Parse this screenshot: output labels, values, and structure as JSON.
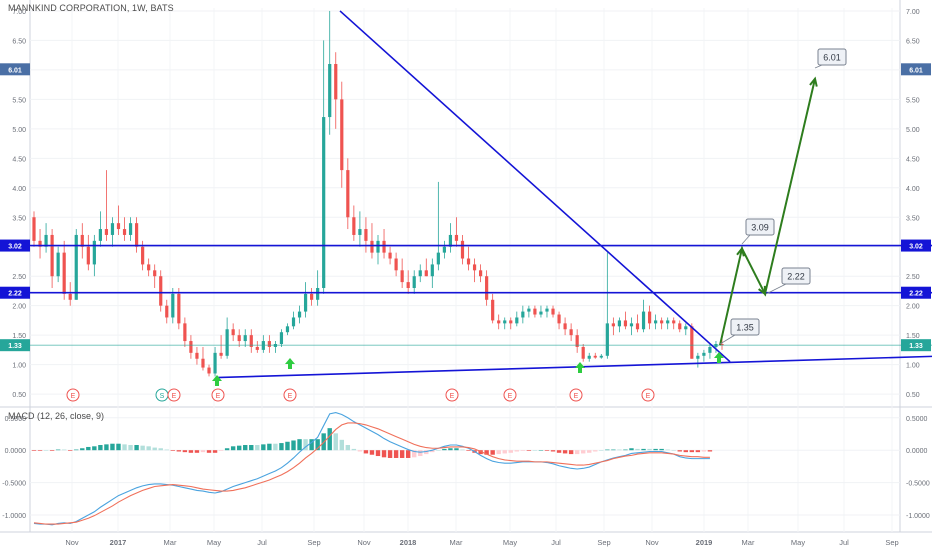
{
  "header": {
    "title": "MANNKIND CORPORATION, 1W, BATS"
  },
  "macd_header": {
    "label": "MACD (12, 26, close, 9)"
  },
  "colors": {
    "up": "#26a69a",
    "down": "#ef5350",
    "resistance": "#1414d6",
    "trend": "#1414d6",
    "projection": "#2e7d1e",
    "arrow_marker": "#2ecc40",
    "macd_line": "#4aa3df",
    "signal_line": "#f0705a",
    "hist_pos_strong": "#26a69a",
    "hist_pos_weak": "#b2dfdb",
    "hist_neg_strong": "#ef5350",
    "hist_neg_weak": "#ffcdd2",
    "price_line": "#26a69a"
  },
  "chart_data": [
    {
      "type": "candlestick",
      "title": "MANNKIND CORPORATION, 1W, BATS",
      "x_ticks": [
        "Nov",
        "2017",
        "Mar",
        "May",
        "Jul",
        "Sep",
        "Nov",
        "2018",
        "Mar",
        "May",
        "Jul",
        "Sep",
        "Nov",
        "2019",
        "Mar",
        "May",
        "Jul",
        "Sep"
      ],
      "y_ticks": [
        "0.50",
        "1.00",
        "1.50",
        "2.00",
        "2.50",
        "3.00",
        "3.50",
        "4.00",
        "4.50",
        "5.00",
        "5.50",
        "6.00",
        "6.50",
        "7.00"
      ],
      "ylim": [
        0.4,
        7.05
      ],
      "price_labels": [
        {
          "text": "6.01",
          "value": 6.01,
          "color": "#4a6fa5"
        },
        {
          "text": "3.02",
          "value": 3.02,
          "color": "#1414d6"
        },
        {
          "text": "2.22",
          "value": 2.22,
          "color": "#1414d6"
        },
        {
          "text": "1.33",
          "value": 1.33,
          "color": "#26a69a"
        }
      ],
      "candles": [
        [
          3.5,
          3.6,
          3.0,
          3.1
        ],
        [
          3.1,
          3.3,
          2.8,
          3.0
        ],
        [
          3.0,
          3.4,
          2.9,
          3.2
        ],
        [
          3.2,
          3.3,
          2.3,
          2.5
        ],
        [
          2.5,
          3.0,
          2.4,
          2.9
        ],
        [
          2.9,
          3.1,
          2.1,
          2.2
        ],
        [
          2.2,
          2.4,
          2.0,
          2.1
        ],
        [
          2.1,
          3.3,
          2.1,
          3.2
        ],
        [
          3.2,
          3.4,
          2.8,
          3.0
        ],
        [
          3.0,
          3.2,
          2.6,
          2.7
        ],
        [
          2.7,
          3.2,
          2.5,
          3.1
        ],
        [
          3.1,
          3.6,
          3.0,
          3.3
        ],
        [
          3.3,
          4.3,
          3.1,
          3.2
        ],
        [
          3.2,
          3.5,
          3.0,
          3.4
        ],
        [
          3.4,
          3.7,
          3.2,
          3.3
        ],
        [
          3.3,
          3.5,
          3.1,
          3.2
        ],
        [
          3.2,
          3.5,
          3.1,
          3.4
        ],
        [
          3.4,
          3.5,
          2.9,
          3.0
        ],
        [
          3.0,
          3.1,
          2.6,
          2.7
        ],
        [
          2.7,
          2.8,
          2.5,
          2.6
        ],
        [
          2.6,
          2.7,
          2.3,
          2.5
        ],
        [
          2.5,
          2.6,
          1.9,
          2.0
        ],
        [
          2.0,
          2.1,
          1.7,
          1.8
        ],
        [
          1.8,
          2.3,
          1.7,
          2.2
        ],
        [
          2.2,
          2.3,
          1.6,
          1.7
        ],
        [
          1.7,
          1.8,
          1.3,
          1.4
        ],
        [
          1.4,
          1.5,
          1.1,
          1.2
        ],
        [
          1.2,
          1.3,
          1.0,
          1.1
        ],
        [
          1.1,
          1.3,
          0.9,
          0.95
        ],
        [
          0.95,
          1.0,
          0.8,
          0.85
        ],
        [
          0.85,
          1.3,
          0.8,
          1.2
        ],
        [
          1.2,
          1.5,
          1.1,
          1.15
        ],
        [
          1.15,
          1.8,
          1.1,
          1.6
        ],
        [
          1.6,
          1.7,
          1.4,
          1.5
        ],
        [
          1.5,
          1.6,
          1.3,
          1.4
        ],
        [
          1.4,
          1.6,
          1.3,
          1.5
        ],
        [
          1.5,
          1.6,
          1.2,
          1.3
        ],
        [
          1.3,
          1.4,
          1.2,
          1.25
        ],
        [
          1.25,
          1.5,
          1.2,
          1.4
        ],
        [
          1.4,
          1.5,
          1.2,
          1.3
        ],
        [
          1.3,
          1.4,
          1.2,
          1.35
        ],
        [
          1.35,
          1.6,
          1.3,
          1.55
        ],
        [
          1.55,
          1.7,
          1.5,
          1.65
        ],
        [
          1.65,
          1.9,
          1.6,
          1.8
        ],
        [
          1.8,
          2.0,
          1.7,
          1.9
        ],
        [
          1.9,
          2.4,
          1.8,
          2.2
        ],
        [
          2.2,
          2.3,
          2.0,
          2.1
        ],
        [
          2.1,
          2.6,
          2.0,
          2.3
        ],
        [
          2.3,
          6.5,
          2.2,
          5.2
        ],
        [
          5.2,
          7.0,
          4.9,
          6.1
        ],
        [
          6.1,
          6.3,
          5.0,
          5.5
        ],
        [
          5.5,
          5.8,
          4.0,
          4.3
        ],
        [
          4.3,
          4.5,
          3.3,
          3.5
        ],
        [
          3.5,
          3.7,
          3.1,
          3.2
        ],
        [
          3.2,
          3.6,
          3.0,
          3.3
        ],
        [
          3.3,
          3.5,
          2.9,
          3.1
        ],
        [
          3.1,
          3.4,
          2.8,
          2.9
        ],
        [
          2.9,
          3.2,
          2.7,
          3.1
        ],
        [
          3.1,
          3.3,
          2.8,
          2.9
        ],
        [
          2.9,
          3.0,
          2.7,
          2.8
        ],
        [
          2.8,
          2.9,
          2.5,
          2.6
        ],
        [
          2.6,
          2.8,
          2.3,
          2.4
        ],
        [
          2.4,
          2.6,
          2.2,
          2.3
        ],
        [
          2.3,
          2.6,
          2.2,
          2.5
        ],
        [
          2.5,
          2.7,
          2.4,
          2.6
        ],
        [
          2.6,
          2.8,
          2.5,
          2.5
        ],
        [
          2.5,
          2.8,
          2.3,
          2.7
        ],
        [
          2.7,
          4.1,
          2.6,
          2.9
        ],
        [
          2.9,
          3.1,
          2.8,
          3.0
        ],
        [
          3.0,
          3.4,
          2.9,
          3.2
        ],
        [
          3.2,
          3.5,
          3.0,
          3.1
        ],
        [
          3.1,
          3.2,
          2.7,
          2.8
        ],
        [
          2.8,
          3.0,
          2.6,
          2.7
        ],
        [
          2.7,
          2.8,
          2.4,
          2.6
        ],
        [
          2.6,
          2.7,
          2.4,
          2.5
        ],
        [
          2.5,
          2.6,
          2.0,
          2.1
        ],
        [
          2.1,
          2.2,
          1.7,
          1.75
        ],
        [
          1.75,
          1.85,
          1.6,
          1.7
        ],
        [
          1.7,
          1.8,
          1.6,
          1.75
        ],
        [
          1.75,
          1.8,
          1.6,
          1.7
        ],
        [
          1.7,
          1.9,
          1.65,
          1.8
        ],
        [
          1.8,
          2.0,
          1.7,
          1.9
        ],
        [
          1.9,
          2.0,
          1.8,
          1.95
        ],
        [
          1.95,
          2.0,
          1.8,
          1.85
        ],
        [
          1.85,
          2.0,
          1.8,
          1.9
        ],
        [
          1.9,
          2.0,
          1.8,
          1.95
        ],
        [
          1.95,
          2.0,
          1.8,
          1.85
        ],
        [
          1.85,
          1.9,
          1.6,
          1.7
        ],
        [
          1.7,
          1.8,
          1.5,
          1.6
        ],
        [
          1.6,
          1.7,
          1.4,
          1.5
        ],
        [
          1.5,
          1.6,
          1.2,
          1.3
        ],
        [
          1.3,
          1.35,
          1.05,
          1.1
        ],
        [
          1.1,
          1.2,
          1.05,
          1.15
        ],
        [
          1.15,
          1.2,
          1.1,
          1.12
        ],
        [
          1.12,
          1.18,
          1.1,
          1.15
        ],
        [
          1.15,
          2.9,
          1.1,
          1.7
        ],
        [
          1.7,
          1.8,
          1.5,
          1.65
        ],
        [
          1.65,
          1.8,
          1.55,
          1.75
        ],
        [
          1.75,
          1.9,
          1.6,
          1.65
        ],
        [
          1.65,
          1.8,
          1.5,
          1.7
        ],
        [
          1.7,
          1.85,
          1.55,
          1.6
        ],
        [
          1.6,
          2.1,
          1.55,
          1.9
        ],
        [
          1.9,
          2.0,
          1.6,
          1.7
        ],
        [
          1.7,
          1.85,
          1.6,
          1.75
        ],
        [
          1.75,
          1.8,
          1.6,
          1.7
        ],
        [
          1.7,
          1.8,
          1.6,
          1.75
        ],
        [
          1.75,
          1.8,
          1.6,
          1.7
        ],
        [
          1.7,
          1.75,
          1.55,
          1.6
        ],
        [
          1.6,
          1.7,
          1.5,
          1.65
        ],
        [
          1.65,
          1.7,
          1.1,
          1.1
        ],
        [
          1.1,
          1.2,
          0.95,
          1.15
        ],
        [
          1.15,
          1.25,
          1.05,
          1.2
        ],
        [
          1.2,
          1.35,
          1.1,
          1.3
        ],
        [
          1.3,
          1.4,
          1.2,
          1.35
        ],
        [
          1.35,
          1.45,
          1.25,
          1.33
        ]
      ],
      "resistance_levels": [
        3.02,
        2.22
      ],
      "current_price": 1.33,
      "earnings_markers": [
        "E",
        "S",
        "E",
        "E",
        "E",
        "E",
        "E",
        "E",
        "E"
      ],
      "projection_labels": [
        "3.09",
        "2.22",
        "1.35",
        "6.01"
      ]
    },
    {
      "type": "macd",
      "title": "MACD (12, 26, close, 9)",
      "y_ticks": [
        "0.5000",
        "0.0000",
        "-0.5000",
        "-1.0000"
      ],
      "ylim": [
        -1.2,
        0.62
      ],
      "macd_line": [
        -1.13,
        -1.14,
        -1.14,
        -1.15,
        -1.13,
        -1.12,
        -1.13,
        -1.1,
        -1.05,
        -1.0,
        -0.95,
        -0.88,
        -0.82,
        -0.76,
        -0.7,
        -0.66,
        -0.62,
        -0.58,
        -0.55,
        -0.53,
        -0.52,
        -0.52,
        -0.53,
        -0.54,
        -0.56,
        -0.58,
        -0.6,
        -0.62,
        -0.63,
        -0.65,
        -0.66,
        -0.64,
        -0.6,
        -0.56,
        -0.53,
        -0.5,
        -0.47,
        -0.44,
        -0.4,
        -0.36,
        -0.32,
        -0.27,
        -0.2,
        -0.12,
        -0.03,
        0.05,
        0.12,
        0.2,
        0.38,
        0.56,
        0.58,
        0.55,
        0.5,
        0.44,
        0.39,
        0.34,
        0.29,
        0.24,
        0.18,
        0.13,
        0.09,
        0.05,
        0.01,
        -0.02,
        -0.03,
        -0.02,
        0.0,
        0.03,
        0.06,
        0.08,
        0.08,
        0.06,
        0.03,
        -0.02,
        -0.08,
        -0.13,
        -0.17,
        -0.19,
        -0.2,
        -0.2,
        -0.19,
        -0.18,
        -0.18,
        -0.18,
        -0.18,
        -0.19,
        -0.21,
        -0.24,
        -0.26,
        -0.28,
        -0.29,
        -0.28,
        -0.26,
        -0.22,
        -0.18,
        -0.15,
        -0.12,
        -0.1,
        -0.08,
        -0.05,
        -0.04,
        -0.03,
        -0.02,
        -0.02,
        -0.02,
        -0.04,
        -0.06,
        -0.1,
        -0.12,
        -0.13,
        -0.13,
        -0.13,
        -0.13
      ],
      "signal_line": [
        -1.12,
        -1.13,
        -1.14,
        -1.14,
        -1.14,
        -1.13,
        -1.12,
        -1.11,
        -1.08,
        -1.05,
        -1.01,
        -0.96,
        -0.91,
        -0.86,
        -0.8,
        -0.75,
        -0.7,
        -0.66,
        -0.62,
        -0.59,
        -0.56,
        -0.55,
        -0.54,
        -0.53,
        -0.54,
        -0.55,
        -0.56,
        -0.58,
        -0.6,
        -0.61,
        -0.62,
        -0.63,
        -0.63,
        -0.62,
        -0.6,
        -0.58,
        -0.55,
        -0.52,
        -0.49,
        -0.46,
        -0.42,
        -0.38,
        -0.33,
        -0.27,
        -0.2,
        -0.12,
        -0.05,
        0.03,
        0.12,
        0.22,
        0.32,
        0.39,
        0.42,
        0.42,
        0.41,
        0.39,
        0.36,
        0.33,
        0.29,
        0.25,
        0.21,
        0.17,
        0.13,
        0.09,
        0.06,
        0.04,
        0.03,
        0.03,
        0.04,
        0.05,
        0.05,
        0.05,
        0.04,
        0.02,
        -0.02,
        -0.06,
        -0.1,
        -0.13,
        -0.15,
        -0.16,
        -0.17,
        -0.17,
        -0.17,
        -0.18,
        -0.18,
        -0.18,
        -0.19,
        -0.2,
        -0.21,
        -0.22,
        -0.23,
        -0.23,
        -0.22,
        -0.2,
        -0.18,
        -0.16,
        -0.13,
        -0.11,
        -0.09,
        -0.08,
        -0.06,
        -0.05,
        -0.04,
        -0.04,
        -0.04,
        -0.05,
        -0.06,
        -0.08,
        -0.09,
        -0.1,
        -0.1,
        -0.11,
        -0.11
      ]
    }
  ]
}
